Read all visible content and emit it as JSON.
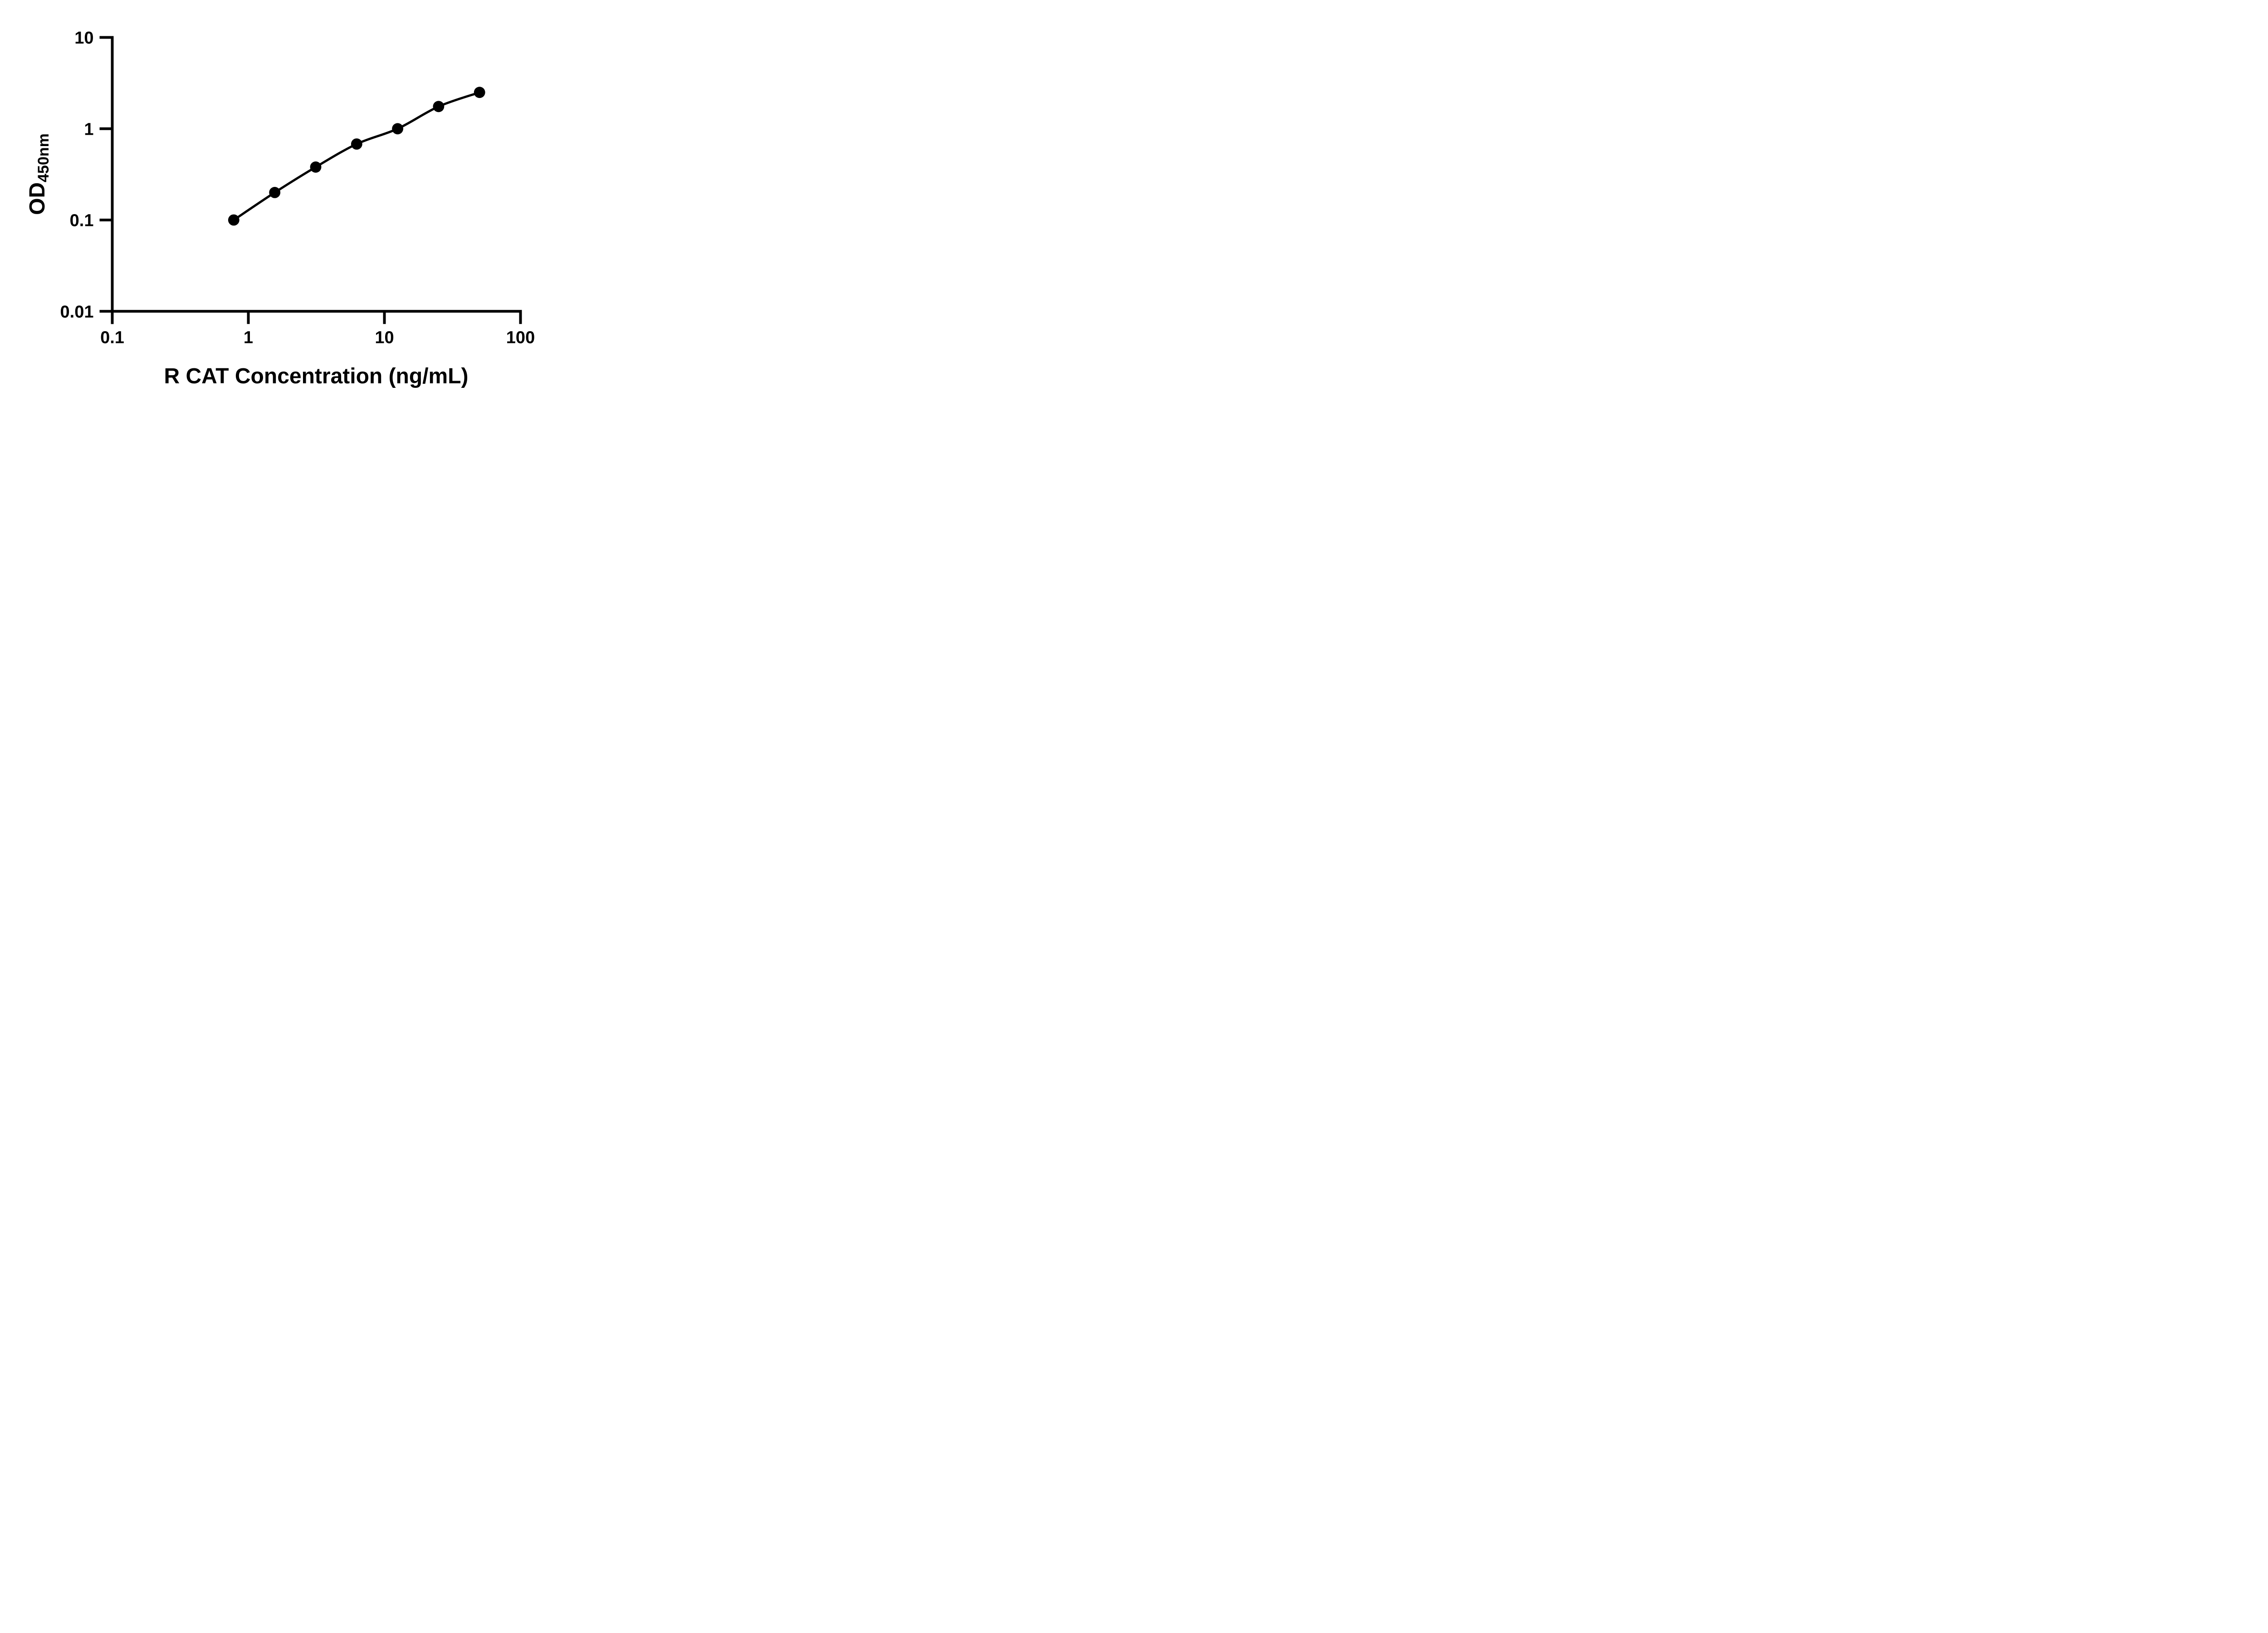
{
  "figure": {
    "background": "#ffffff",
    "ink_color": "#000000"
  },
  "chart_data": {
    "type": "scatter",
    "line": "smooth-connecting-curve",
    "marker": "filled-circle",
    "marker_color": "#000000",
    "line_color": "#000000",
    "grid": false,
    "legend": false,
    "xscale": "log",
    "yscale": "log",
    "xlim": [
      0.1,
      100
    ],
    "ylim": [
      0.01,
      10
    ],
    "x": [
      0.781,
      1.563,
      3.125,
      6.25,
      12.5,
      25,
      50
    ],
    "y": [
      0.1,
      0.2,
      0.38,
      0.68,
      1.0,
      1.75,
      2.5
    ],
    "x_tick_values": [
      0.1,
      1,
      10,
      100
    ],
    "x_tick_labels": [
      "0.1",
      "1",
      "10",
      "100"
    ],
    "y_tick_values": [
      10,
      1,
      0.1,
      0.01
    ],
    "y_tick_labels": [
      "10",
      "1",
      "0.1",
      "0.01"
    ],
    "xlabel": "R CAT Concentration (ng/mL)",
    "ylabel_main": "OD",
    "ylabel_sub": "450nm"
  }
}
